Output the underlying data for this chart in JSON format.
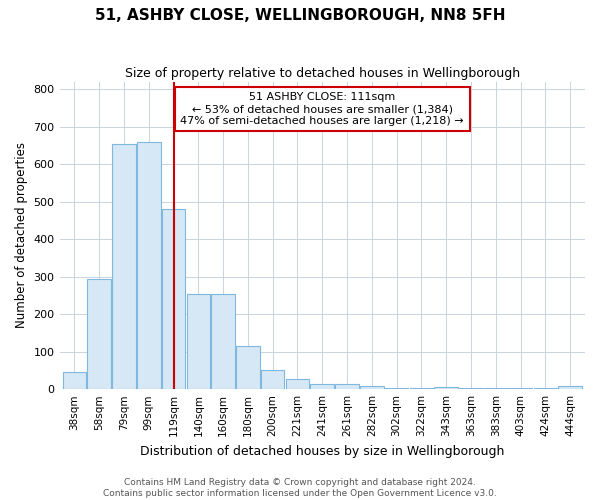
{
  "title": "51, ASHBY CLOSE, WELLINGBOROUGH, NN8 5FH",
  "subtitle": "Size of property relative to detached houses in Wellingborough",
  "xlabel": "Distribution of detached houses by size in Wellingborough",
  "ylabel": "Number of detached properties",
  "footer_line1": "Contains HM Land Registry data © Crown copyright and database right 2024.",
  "footer_line2": "Contains public sector information licensed under the Open Government Licence v3.0.",
  "bar_labels": [
    "38sqm",
    "58sqm",
    "79sqm",
    "99sqm",
    "119sqm",
    "140sqm",
    "160sqm",
    "180sqm",
    "200sqm",
    "221sqm",
    "241sqm",
    "261sqm",
    "282sqm",
    "302sqm",
    "322sqm",
    "343sqm",
    "363sqm",
    "383sqm",
    "403sqm",
    "424sqm",
    "444sqm"
  ],
  "bar_values": [
    45,
    295,
    655,
    660,
    480,
    255,
    255,
    115,
    50,
    28,
    15,
    15,
    8,
    2,
    3,
    5,
    3,
    2,
    3,
    2,
    8
  ],
  "bar_color": "#d6e8f5",
  "bar_edgecolor": "#7fb8df",
  "background_color": "#ffffff",
  "grid_color": "#c8d4e0",
  "vline_x_index": 4,
  "vline_color": "#cc0000",
  "annotation_line1": "51 ASHBY CLOSE: 111sqm",
  "annotation_line2": "← 53% of detached houses are smaller (1,384)",
  "annotation_line3": "47% of semi-detached houses are larger (1,218) →",
  "annotation_box_color": "#ffffff",
  "annotation_box_edgecolor": "#cc0000",
  "ylim": [
    0,
    820
  ],
  "yticks": [
    0,
    100,
    200,
    300,
    400,
    500,
    600,
    700,
    800
  ]
}
